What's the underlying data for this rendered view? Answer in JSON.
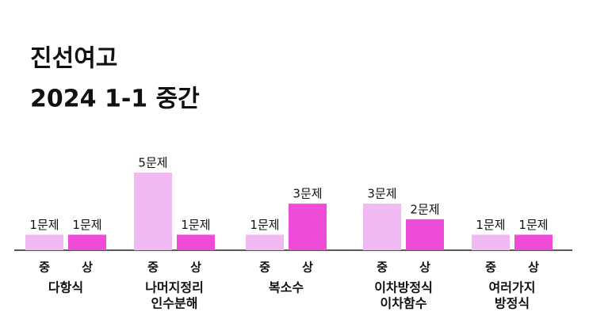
{
  "chart_data": {
    "type": "bar",
    "title": "진선여고",
    "subtitle": "2024 1-1 중간",
    "categories": [
      [
        "다항식"
      ],
      [
        "나머지정리",
        "인수분해"
      ],
      [
        "복소수"
      ],
      [
        "이차방정식",
        "이차함수"
      ],
      [
        "여러가지",
        "방정식"
      ]
    ],
    "series": [
      {
        "name": "중",
        "color": "#f1b9f2",
        "values": [
          1,
          5,
          1,
          3,
          1
        ],
        "value_labels": [
          "1문제",
          "5문제",
          "1문제",
          "3문제",
          "1문제"
        ]
      },
      {
        "name": "상",
        "color": "#ef4bd9",
        "values": [
          1,
          1,
          3,
          2,
          1
        ],
        "value_labels": [
          "1문제",
          "1문제",
          "3문제",
          "2문제",
          "1문제"
        ]
      }
    ]
  }
}
